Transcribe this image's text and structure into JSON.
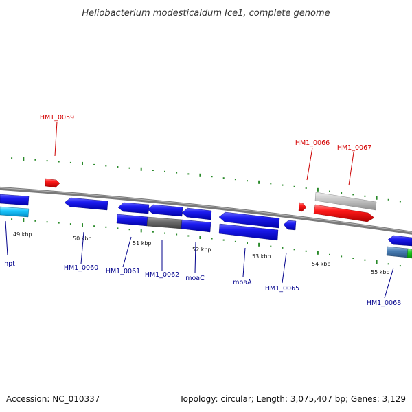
{
  "title": "Heliobacterium modesticaldum Ice1, complete genome",
  "footer": {
    "accession": "Accession: NC_010337",
    "topology": "Topology: circular; Length: 3,075,407 bp; Genes: 3,129"
  },
  "scale_ticks": [
    "49 kbp",
    "50 kbp",
    "51 kbp",
    "52 kbp",
    "53 kbp",
    "54 kbp",
    "55 kbp"
  ],
  "colors": {
    "forward_label": "#d40000",
    "reverse_label": "#00008b",
    "feature_blue": "#1010e8",
    "feature_red": "#ff1414",
    "feature_gray": "#666666",
    "feature_silver": "#c8c8c8",
    "feature_cyan": "#00c8ff",
    "feature_steel": "#4a7fb5",
    "feature_green": "#22cc22",
    "backbone": "#7a7a7a",
    "tick_green": "#2a8a2a"
  },
  "genes": {
    "forward": [
      "HM1_0059",
      "HM1_0066",
      "HM1_0067"
    ],
    "reverse": [
      "hpt",
      "HM1_0060",
      "HM1_0061",
      "HM1_0062",
      "moaC",
      "moaA",
      "HM1_0065",
      "HM1_0068"
    ]
  }
}
